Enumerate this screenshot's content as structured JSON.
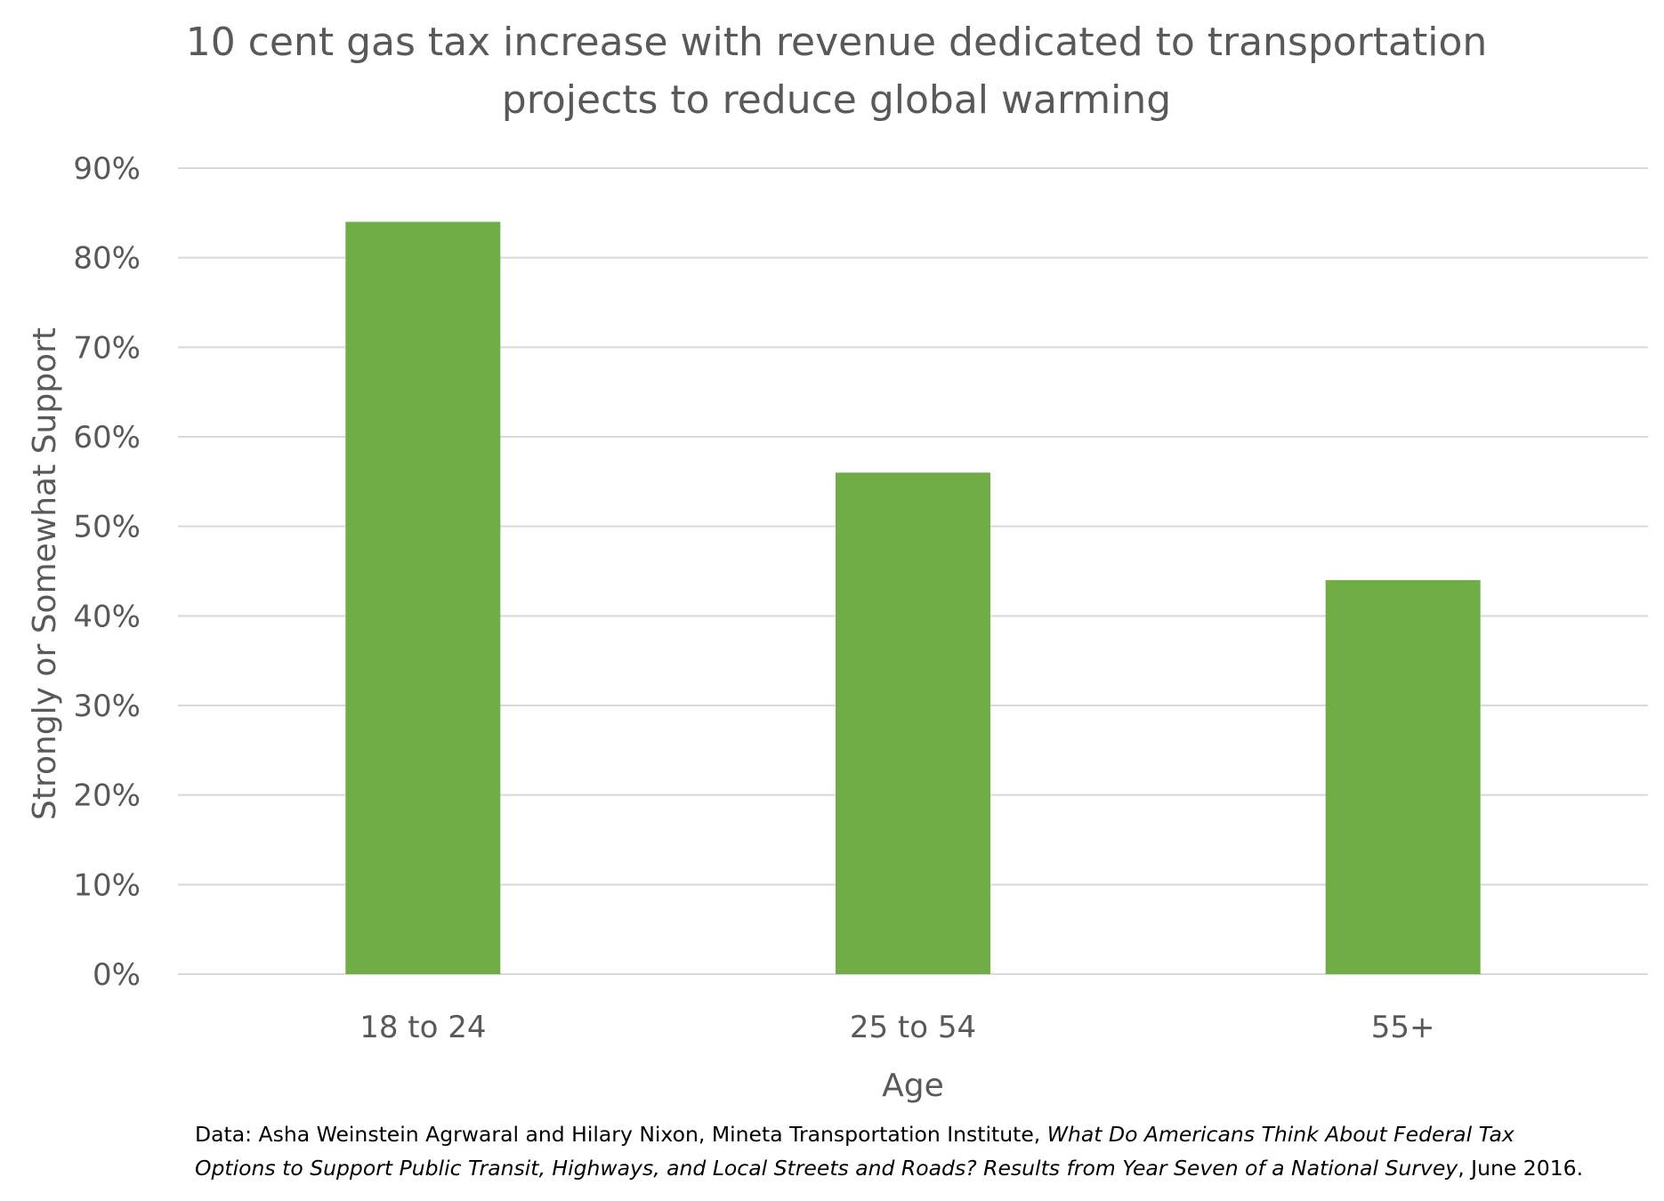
{
  "chart_data": {
    "type": "bar",
    "title_lines": [
      "10 cent gas tax increase with revenue dedicated to transportation",
      "projects to reduce global warming"
    ],
    "categories": [
      "18 to 24",
      "25 to 54",
      "55+"
    ],
    "values": [
      84,
      56,
      44
    ],
    "ytick_labels": [
      "0%",
      "10%",
      "20%",
      "30%",
      "40%",
      "50%",
      "60%",
      "70%",
      "80%",
      "90%"
    ],
    "ylim": [
      0,
      90
    ],
    "ytick_step": 10,
    "xlabel": "Age",
    "ylabel": "Strongly or Somewhat Support",
    "grid": true,
    "legend": "none",
    "bar_color": "#70AD47",
    "grid_color": "#D9D9D9"
  },
  "source_note": {
    "line1_regular": "Data: Asha Weinstein Agrwaral and Hilary Nixon, Mineta Transportation Institute, ",
    "line1_italic": "What Do Americans Think About Federal Tax",
    "line2_italic": "Options to Support Public Transit, Highways, and Local Streets and Roads? Results from Year Seven of a National Survey",
    "line2_regular": ", June 2016."
  }
}
